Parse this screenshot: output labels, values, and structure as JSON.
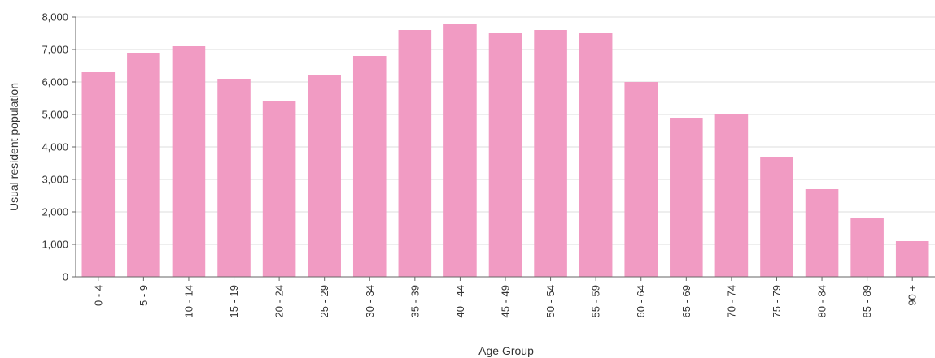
{
  "chart_data": {
    "type": "bar",
    "xlabel": "Age Group",
    "ylabel": "Usual resident population",
    "ylim": [
      0,
      8000
    ],
    "y_ticks": [
      0,
      1000,
      2000,
      3000,
      4000,
      5000,
      6000,
      7000,
      8000
    ],
    "y_tick_labels": [
      "0",
      "1,000",
      "2,000",
      "3,000",
      "4,000",
      "5,000",
      "6,000",
      "7,000",
      "8,000"
    ],
    "categories": [
      "0 - 4",
      "5 - 9",
      "10 - 14",
      "15 - 19",
      "20 - 24",
      "25 - 29",
      "30 - 34",
      "35 - 39",
      "40 - 44",
      "45 - 49",
      "50 - 54",
      "55 - 59",
      "60 - 64",
      "65 - 69",
      "70 - 74",
      "75 - 79",
      "80 - 84",
      "85 - 89",
      "90 +"
    ],
    "values": [
      6300,
      6900,
      7100,
      6100,
      5400,
      6200,
      6800,
      7600,
      7800,
      7500,
      7600,
      7500,
      6000,
      4900,
      5000,
      3700,
      2700,
      1800,
      1100
    ],
    "grid": true,
    "bar_color": "#f19bc3",
    "legend": "none"
  }
}
